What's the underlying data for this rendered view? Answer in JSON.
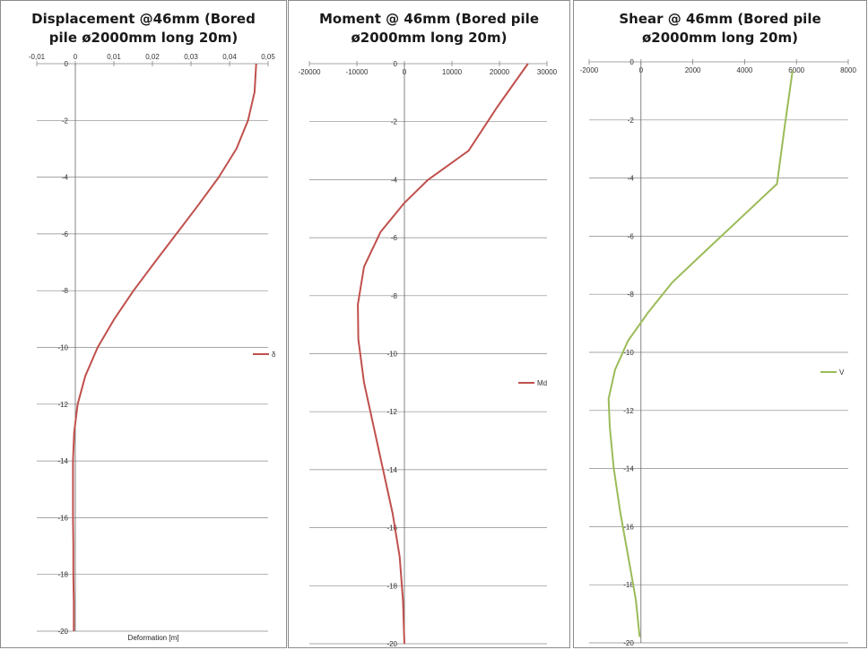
{
  "charts": [
    {
      "title_line1": "Displacement @46mm (Bored",
      "title_line2": "pile ø2000mm long 20m)",
      "chart_data_ref": 0
    },
    {
      "title_line1": "Moment @ 46mm (Bored pile",
      "title_line2": "ø2000mm long 20m)",
      "chart_data_ref": 1
    },
    {
      "title_line1": "Shear @ 46mm (Bored pile",
      "title_line2": "ø2000mm long 20m)",
      "chart_data_ref": 2
    }
  ],
  "chart_data": [
    {
      "type": "line",
      "title": "Displacement @46mm (Bored pile ø2000mm long 20m)",
      "xlabel": "Deformation [m]",
      "ylabel": "",
      "xlim": [
        -0.01,
        0.05
      ],
      "ylim": [
        -20,
        0
      ],
      "x_ticks": [
        "-0,01",
        "0",
        "0,01",
        "0,02",
        "0,03",
        "0,04",
        "0,05"
      ],
      "y_ticks": [
        "0",
        "-2",
        "-4",
        "-6",
        "-8",
        "-10",
        "-12",
        "-14",
        "-16",
        "-18",
        "-20"
      ],
      "grid": true,
      "legend": "right",
      "color": "#c0504d",
      "series": [
        {
          "name": "δ",
          "points": [
            [
              0.0469,
              0
            ],
            [
              0.0465,
              -1
            ],
            [
              0.0448,
              -2
            ],
            [
              0.0418,
              -3
            ],
            [
              0.0372,
              -4
            ],
            [
              0.0318,
              -5
            ],
            [
              0.0262,
              -6
            ],
            [
              0.0206,
              -7
            ],
            [
              0.0151,
              -8
            ],
            [
              0.0101,
              -9
            ],
            [
              0.0058,
              -10
            ],
            [
              0.0026,
              -11
            ],
            [
              0.0006,
              -12
            ],
            [
              -0.0003,
              -13
            ],
            [
              -0.0006,
              -14
            ],
            [
              -0.0006,
              -15
            ],
            [
              -0.0006,
              -16
            ],
            [
              -0.0005,
              -17
            ],
            [
              -0.0005,
              -18
            ],
            [
              -0.0004,
              -19
            ],
            [
              -0.0004,
              -20
            ]
          ]
        }
      ]
    },
    {
      "type": "line",
      "title": "Moment @ 46mm (Bored pile ø2000mm long 20m)",
      "xlabel": "",
      "ylabel": "",
      "xlim": [
        -20000,
        30000
      ],
      "ylim": [
        -20,
        0
      ],
      "x_ticks": [
        "-20000",
        "-10000",
        "0",
        "10000",
        "20000",
        "30000"
      ],
      "y_ticks": [
        "0",
        "-2",
        "-4",
        "-6",
        "-8",
        "-10",
        "-12",
        "-14",
        "-16",
        "-18",
        "-20"
      ],
      "grid": true,
      "legend": "right",
      "color": "#c0504d",
      "series": [
        {
          "name": "Md",
          "points": [
            [
              26000,
              0
            ],
            [
              19500,
              -1.5
            ],
            [
              13500,
              -3
            ],
            [
              5000,
              -4
            ],
            [
              0,
              -4.8
            ],
            [
              -5000,
              -5.8
            ],
            [
              -8500,
              -7
            ],
            [
              -9800,
              -8.3
            ],
            [
              -9700,
              -9.5
            ],
            [
              -8500,
              -11
            ],
            [
              -6500,
              -12.5
            ],
            [
              -4500,
              -14
            ],
            [
              -2500,
              -15.5
            ],
            [
              -1000,
              -17
            ],
            [
              -300,
              -18.5
            ],
            [
              0,
              -20
            ]
          ]
        }
      ]
    },
    {
      "type": "line",
      "title": "Shear @ 46mm (Bored pile ø2000mm long 20m)",
      "xlabel": "",
      "ylabel": "",
      "xlim": [
        -2000,
        8000
      ],
      "ylim": [
        -20,
        0
      ],
      "x_ticks": [
        "-2000",
        "0",
        "2000",
        "4000",
        "6000",
        "8000"
      ],
      "y_ticks": [
        "0",
        "-2",
        "-4",
        "-6",
        "-8",
        "-10",
        "-12",
        "-14",
        "-16",
        "-18",
        "-20"
      ],
      "grid": true,
      "legend": "right",
      "color": "#9bbb59",
      "series": [
        {
          "name": "V",
          "points": [
            [
              5850,
              -0.3
            ],
            [
              5550,
              -2.2
            ],
            [
              5250,
              -4.2
            ],
            [
              3700,
              -5.5
            ],
            [
              2500,
              -6.5
            ],
            [
              1200,
              -7.6
            ],
            [
              300,
              -8.6
            ],
            [
              -500,
              -9.6
            ],
            [
              -1000,
              -10.6
            ],
            [
              -1250,
              -11.6
            ],
            [
              -1200,
              -12.6
            ],
            [
              -1050,
              -14
            ],
            [
              -800,
              -15.5
            ],
            [
              -500,
              -17
            ],
            [
              -200,
              -18.5
            ],
            [
              -50,
              -19.8
            ]
          ]
        }
      ]
    }
  ]
}
